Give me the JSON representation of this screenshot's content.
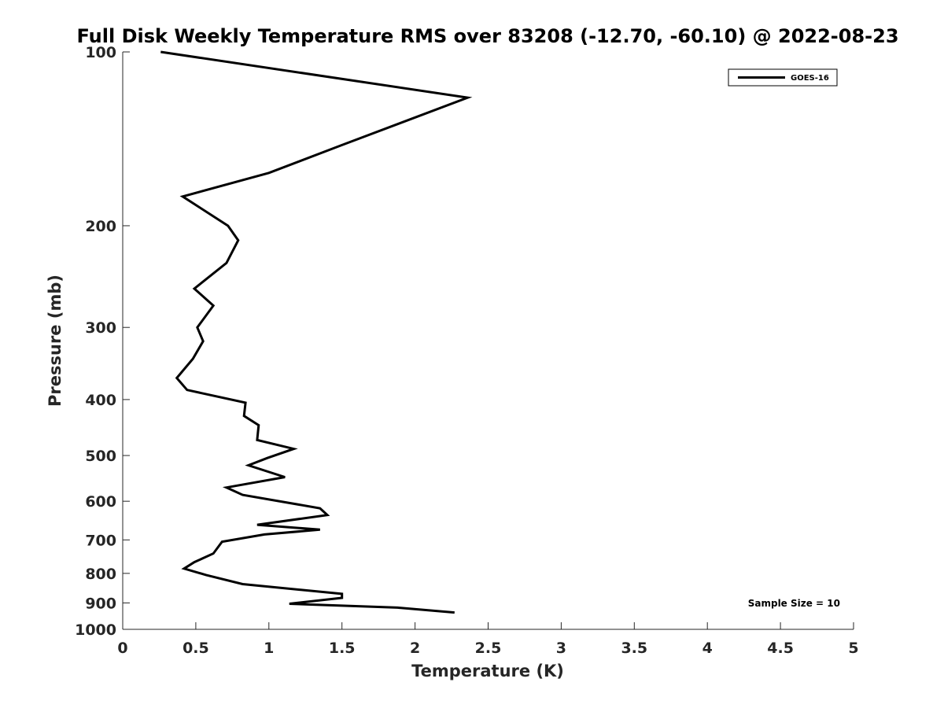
{
  "chart_data": {
    "type": "line",
    "title": "Full Disk Weekly Temperature RMS over 83208 (-12.70, -60.10) @ 2022-08-23",
    "xlabel": "Temperature (K)",
    "ylabel": "Pressure (mb)",
    "xlim": [
      0,
      5
    ],
    "ylim": [
      100,
      1000
    ],
    "y_scale": "log",
    "y_reversed": true,
    "grid": false,
    "x_ticks": [
      "0",
      "0.5",
      "1",
      "1.5",
      "2",
      "2.5",
      "3",
      "3.5",
      "4",
      "4.5",
      "5"
    ],
    "y_ticks": [
      "100",
      "200",
      "300",
      "400",
      "500",
      "600",
      "700",
      "800",
      "900",
      "1000"
    ],
    "legend": {
      "placement": "top-right",
      "entries": [
        "GOES-16"
      ]
    },
    "annotation": "Sample Size = 10",
    "series": [
      {
        "name": "GOES-16",
        "color": "#000000",
        "points": [
          [
            0.26,
            100
          ],
          [
            2.36,
            120
          ],
          [
            1.5,
            145
          ],
          [
            1.0,
            162
          ],
          [
            0.41,
            178
          ],
          [
            0.72,
            200
          ],
          [
            0.79,
            212
          ],
          [
            0.71,
            232
          ],
          [
            0.49,
            257
          ],
          [
            0.62,
            275
          ],
          [
            0.51,
            300
          ],
          [
            0.55,
            317
          ],
          [
            0.48,
            340
          ],
          [
            0.37,
            367
          ],
          [
            0.44,
            385
          ],
          [
            0.84,
            405
          ],
          [
            0.83,
            427
          ],
          [
            0.93,
            443
          ],
          [
            0.92,
            470
          ],
          [
            1.17,
            487
          ],
          [
            0.99,
            505
          ],
          [
            0.86,
            520
          ],
          [
            1.11,
            545
          ],
          [
            0.71,
            568
          ],
          [
            0.82,
            585
          ],
          [
            1.35,
            617
          ],
          [
            1.4,
            634
          ],
          [
            0.92,
            659
          ],
          [
            1.35,
            672
          ],
          [
            0.97,
            685
          ],
          [
            0.68,
            705
          ],
          [
            0.62,
            739
          ],
          [
            0.49,
            765
          ],
          [
            0.42,
            785
          ],
          [
            0.57,
            805
          ],
          [
            0.82,
            835
          ],
          [
            1.5,
            868
          ],
          [
            1.5,
            882
          ],
          [
            1.14,
            903
          ],
          [
            1.88,
            917
          ],
          [
            2.27,
            935
          ]
        ]
      }
    ]
  }
}
